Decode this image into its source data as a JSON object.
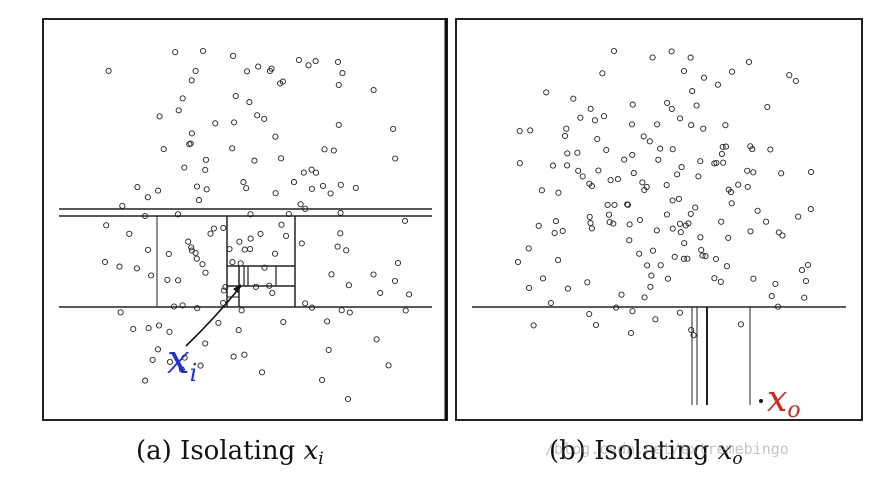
{
  "panel_a": {
    "caption_prefix": "(a) Isolating ",
    "caption_var": "x",
    "caption_sub": "i",
    "label_var": "x",
    "label_sub": "i",
    "label_color": "#1f2fd0"
  },
  "panel_b": {
    "caption_prefix": "(b) Isolating ",
    "caption_var": "x",
    "caption_sub": "o",
    "label_var": "x",
    "label_sub": "o",
    "label_color": "#e0201c"
  },
  "watermark": "/blog.csdn.net/extremebingo"
}
